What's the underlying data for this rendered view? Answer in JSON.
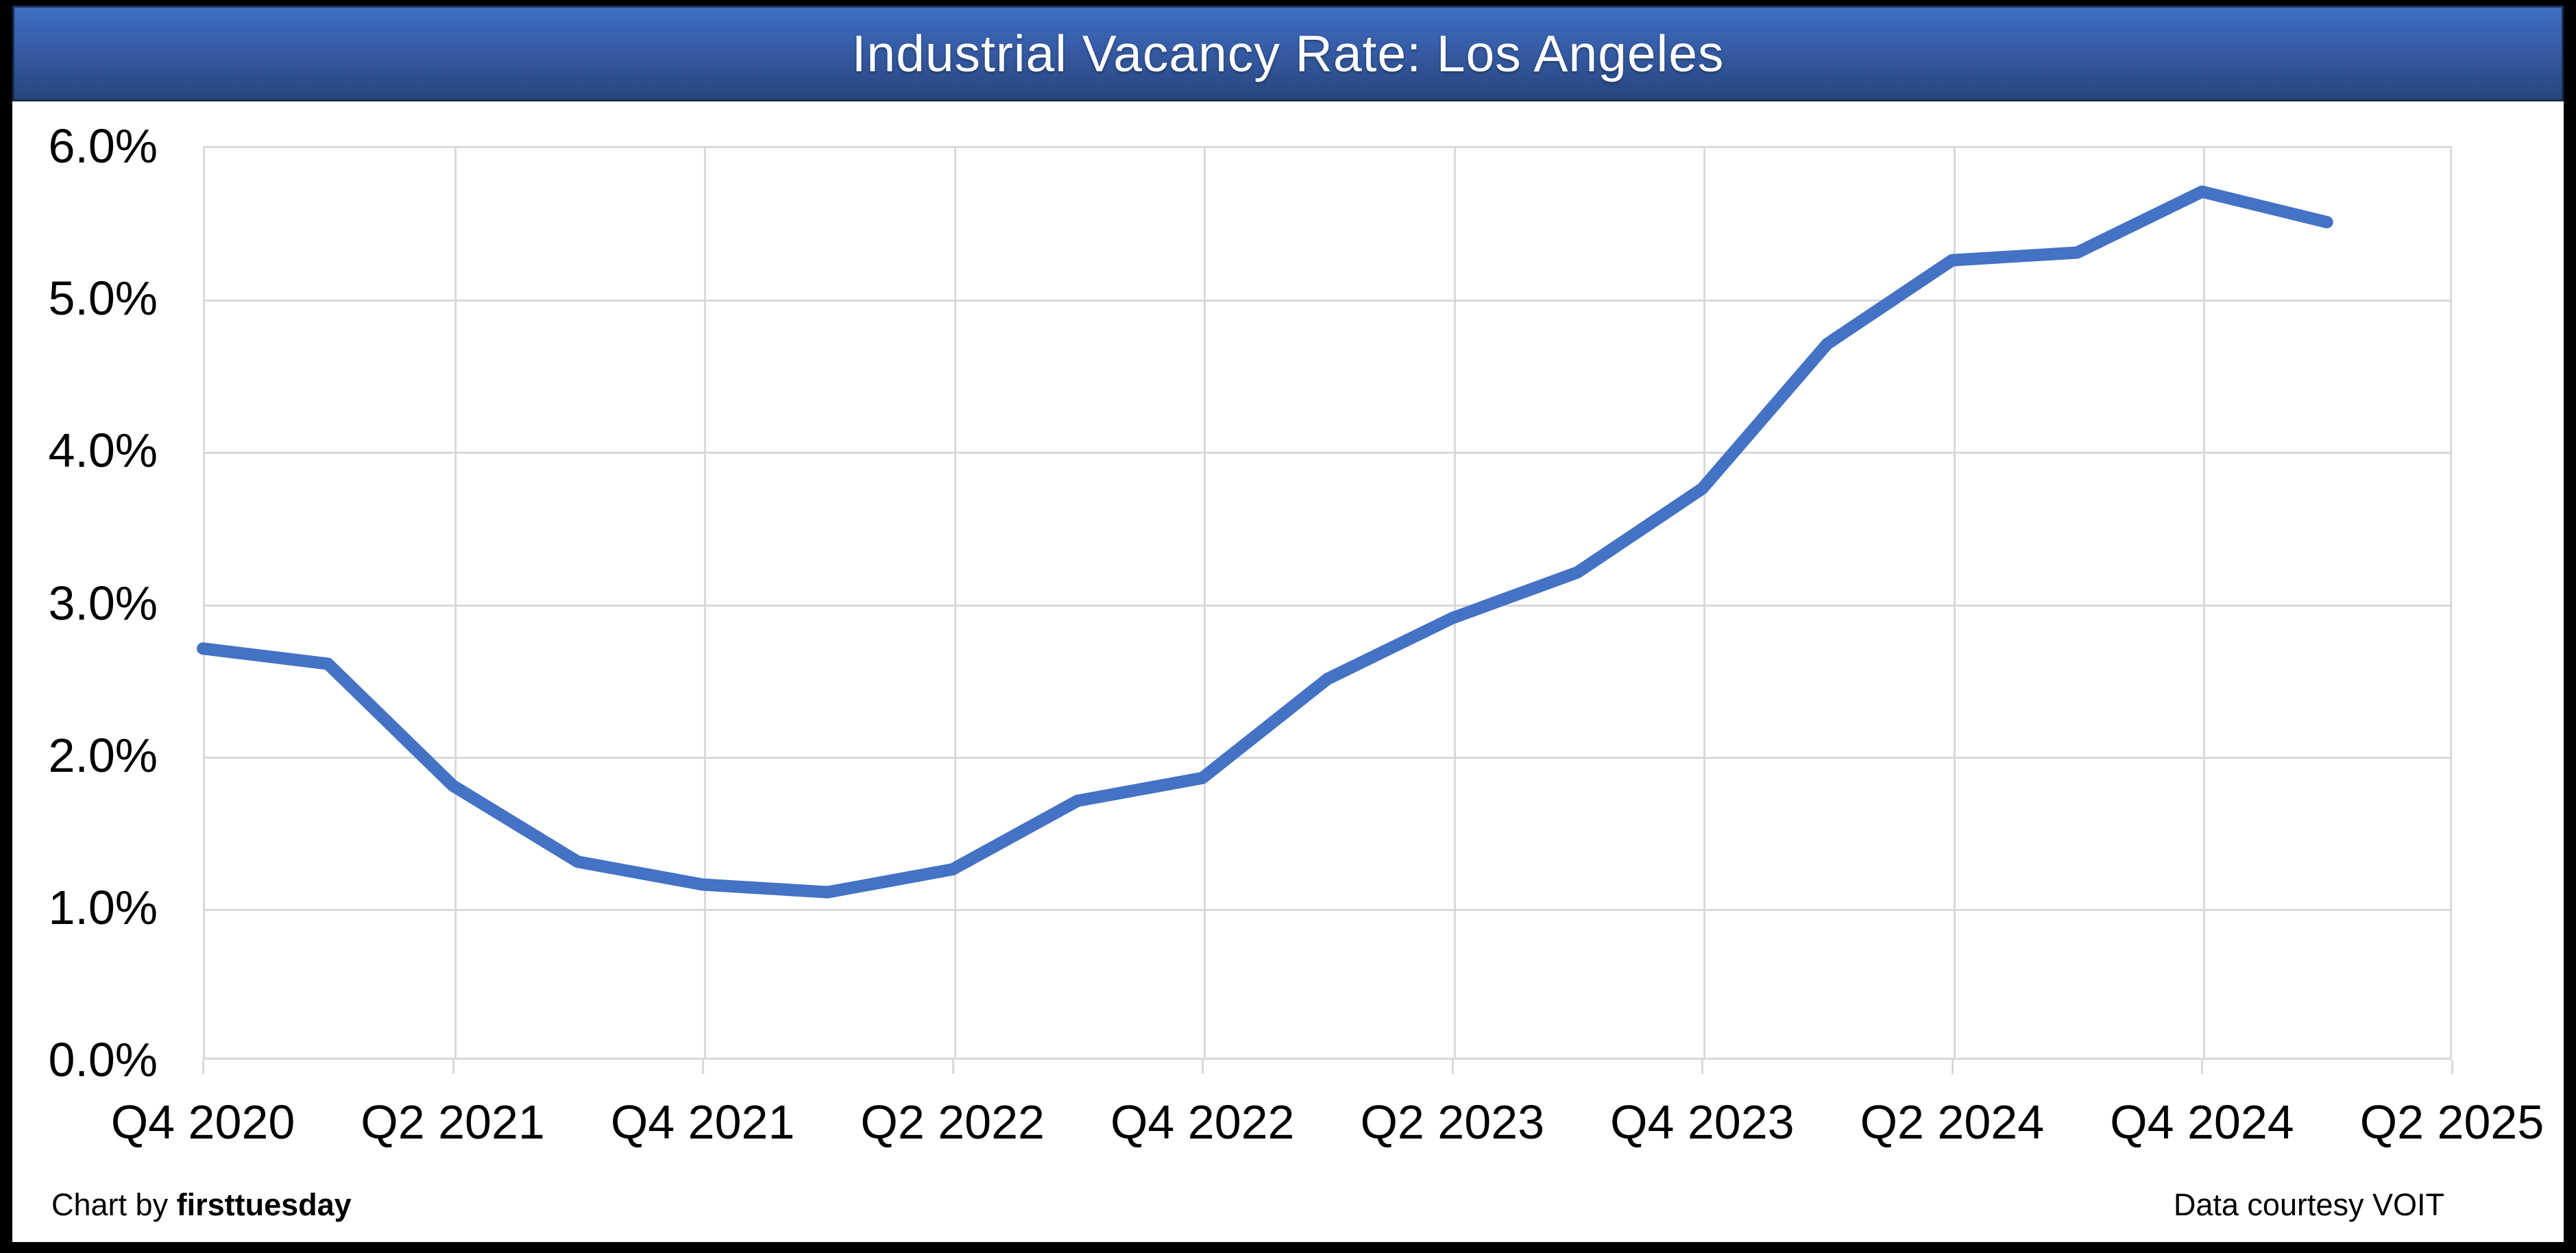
{
  "header": {
    "title": "Industrial Vacancy Rate: Los Angeles"
  },
  "footer": {
    "left_prefix": "Chart by ",
    "left_brand": "firsttuesday",
    "right": "Data courtesy VOIT"
  },
  "colors": {
    "line": "#4472C4",
    "gridline": "#D9D9D9",
    "frame_border": "#000000",
    "title_text": "#FFFFFF",
    "title_gradient_top": "#3E6DC2",
    "title_gradient_bottom": "#25457C",
    "title_border": "#1A2C52"
  },
  "chart_data": {
    "type": "line",
    "title": "Industrial Vacancy Rate: Los Angeles",
    "series_name": "Industrial vacancy rate",
    "x": [
      "Q4 2020",
      "Q1 2021",
      "Q2 2021",
      "Q3 2021",
      "Q4 2021",
      "Q1 2022",
      "Q2 2022",
      "Q3 2022",
      "Q4 2022",
      "Q1 2023",
      "Q2 2023",
      "Q3 2023",
      "Q4 2023",
      "Q1 2024",
      "Q2 2024",
      "Q3 2024",
      "Q4 2024",
      "Q1 2025"
    ],
    "values": [
      2.7,
      2.6,
      1.8,
      1.3,
      1.15,
      1.1,
      1.25,
      1.7,
      1.85,
      2.5,
      2.9,
      3.2,
      3.75,
      4.7,
      5.25,
      5.3,
      5.7,
      5.5
    ],
    "unit": "%",
    "xlabel": "",
    "ylabel": "",
    "ylim": [
      0,
      6
    ],
    "y_tick_step": 1.0,
    "y_tick_labels_top_to_bottom": [
      "6.0%",
      "5.0%",
      "4.0%",
      "3.0%",
      "2.0%",
      "1.0%",
      "0.0%"
    ],
    "x_tick_labels": [
      "Q4 2020",
      "Q2 2021",
      "Q4 2021",
      "Q2 2022",
      "Q4 2022",
      "Q2 2023",
      "Q4 2023",
      "Q2 2024",
      "Q4 2024",
      "Q2 2025"
    ],
    "x_axis_total_quarters": 18,
    "x_ticks_every_quarters": 2,
    "grid": true,
    "legend": "none"
  }
}
